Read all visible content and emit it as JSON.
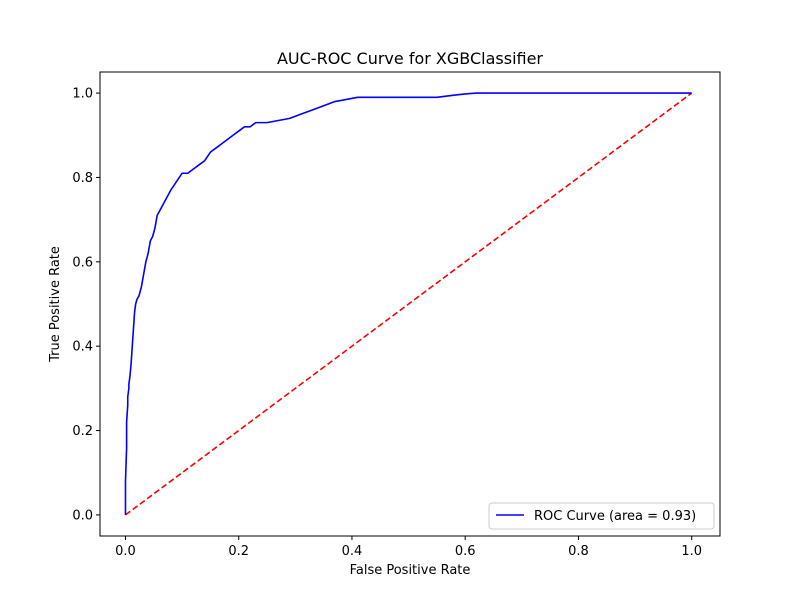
{
  "chart_data": {
    "type": "line",
    "title": "AUC-ROC Curve for XGBClassifier",
    "xlabel": "False Positive Rate",
    "ylabel": "True Positive Rate",
    "xlim": [
      -0.045,
      1.05
    ],
    "ylim": [
      -0.05,
      1.05
    ],
    "xticks": [
      0.0,
      0.2,
      0.4,
      0.6,
      0.8,
      1.0
    ],
    "yticks": [
      0.0,
      0.2,
      0.4,
      0.6,
      0.8,
      1.0
    ],
    "xtick_labels": [
      "0.0",
      "0.2",
      "0.4",
      "0.6",
      "0.8",
      "1.0"
    ],
    "ytick_labels": [
      "0.0",
      "0.2",
      "0.4",
      "0.6",
      "0.8",
      "1.0"
    ],
    "grid": false,
    "legend_position": "lower-right",
    "series": [
      {
        "name": "ROC Curve (area = 0.93)",
        "color": "#0000ff",
        "style": "solid",
        "x": [
          0.0,
          0.0,
          0.002,
          0.002,
          0.004,
          0.004,
          0.006,
          0.006,
          0.008,
          0.01,
          0.012,
          0.014,
          0.016,
          0.018,
          0.02,
          0.024,
          0.028,
          0.032,
          0.036,
          0.04,
          0.044,
          0.048,
          0.052,
          0.056,
          0.06,
          0.064,
          0.068,
          0.072,
          0.076,
          0.08,
          0.085,
          0.09,
          0.095,
          0.1,
          0.105,
          0.11,
          0.12,
          0.13,
          0.14,
          0.15,
          0.16,
          0.17,
          0.18,
          0.19,
          0.2,
          0.21,
          0.22,
          0.23,
          0.25,
          0.27,
          0.29,
          0.31,
          0.33,
          0.35,
          0.37,
          0.39,
          0.41,
          0.43,
          0.45,
          0.5,
          0.55,
          0.58,
          0.6,
          0.62,
          0.7,
          0.8,
          0.9,
          1.0
        ],
        "y": [
          0.0,
          0.08,
          0.16,
          0.22,
          0.26,
          0.28,
          0.3,
          0.31,
          0.33,
          0.36,
          0.4,
          0.44,
          0.48,
          0.5,
          0.51,
          0.52,
          0.54,
          0.57,
          0.6,
          0.62,
          0.65,
          0.66,
          0.68,
          0.71,
          0.72,
          0.73,
          0.74,
          0.75,
          0.76,
          0.77,
          0.78,
          0.79,
          0.8,
          0.81,
          0.81,
          0.81,
          0.82,
          0.83,
          0.84,
          0.86,
          0.87,
          0.88,
          0.89,
          0.9,
          0.91,
          0.92,
          0.92,
          0.93,
          0.93,
          0.935,
          0.94,
          0.95,
          0.96,
          0.97,
          0.98,
          0.985,
          0.99,
          0.99,
          0.99,
          0.99,
          0.99,
          0.995,
          0.998,
          1.0,
          1.0,
          1.0,
          1.0,
          1.0
        ]
      },
      {
        "color": "#ff0000",
        "style": "dashed",
        "x": [
          0.0,
          1.0
        ],
        "y": [
          0.0,
          1.0
        ]
      }
    ]
  }
}
